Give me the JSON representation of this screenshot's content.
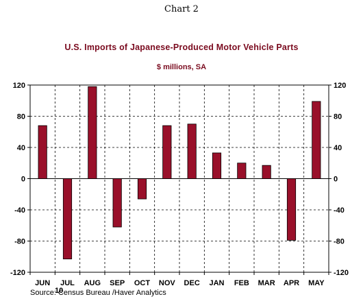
{
  "chart_label": "Chart 2",
  "chart_data": {
    "type": "bar",
    "title": "U.S. Imports of Japanese-Produced Motor Vehicle Parts",
    "subtitle": "$ millions, SA",
    "categories": [
      "JUN",
      "JUL",
      "AUG",
      "SEP",
      "OCT",
      "NOV",
      "DEC",
      "JAN",
      "FEB",
      "MAR",
      "APR",
      "MAY"
    ],
    "values": [
      68,
      -103,
      118,
      -62,
      -26,
      68,
      70,
      33,
      20,
      17,
      -79,
      99
    ],
    "year_label": "10",
    "ylim": [
      -120,
      120
    ],
    "yticks": [
      -120,
      -80,
      -40,
      0,
      40,
      80,
      120
    ],
    "grid": true,
    "bar_color": "#99102a"
  },
  "source": "Source:  Census Bureau /Haver Analytics"
}
